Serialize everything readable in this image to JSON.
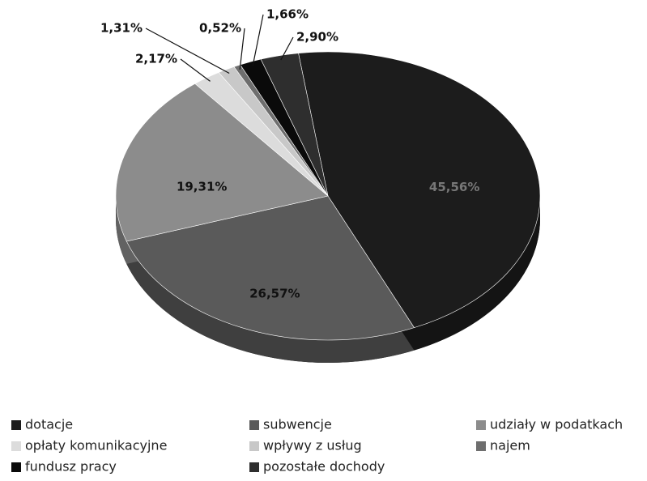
{
  "chart_data": {
    "type": "pie",
    "categories": [
      "dotacje",
      "subwencje",
      "udziały w podatkach",
      "opłaty komunikacyjne",
      "wpływy z usług",
      "najem",
      "fundusz pracy",
      "pozostałe dochody"
    ],
    "values": [
      45.56,
      26.57,
      19.31,
      2.17,
      1.31,
      0.52,
      1.66,
      2.9
    ],
    "value_labels": [
      "45,56%",
      "26,57%",
      "19,31%",
      "2,17%",
      "1,31%",
      "0,52%",
      "1,66%",
      "2,90%"
    ],
    "colors": [
      "#1c1c1c",
      "#5a5a5a",
      "#8c8c8c",
      "#dcdcdc",
      "#c8c8c8",
      "#6e6e6e",
      "#0a0a0a",
      "#2e2e2e"
    ],
    "legend": "bottom"
  }
}
